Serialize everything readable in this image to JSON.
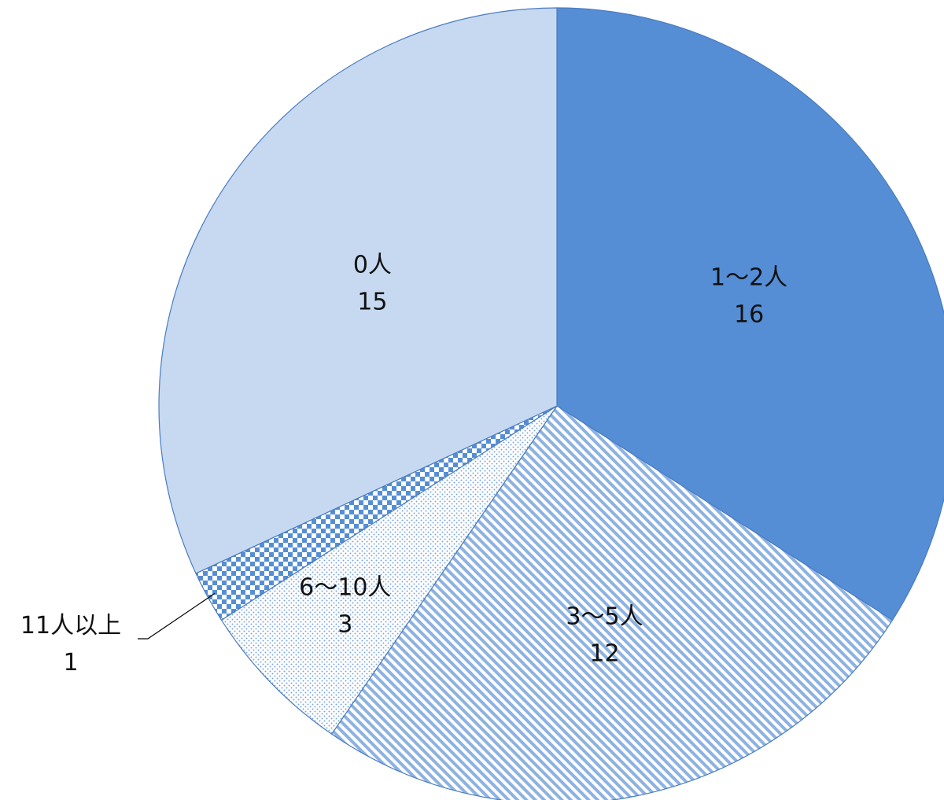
{
  "chart_data": {
    "type": "pie",
    "title": "",
    "slices": [
      {
        "label": "1～2人",
        "value": 16,
        "value_text": "16",
        "fill": "solid",
        "color": "#558ed5"
      },
      {
        "label": "3～5人",
        "value": 12,
        "value_text": "12",
        "fill": "diagonal-stripes",
        "color": "#558ed5"
      },
      {
        "label": "6～10人",
        "value": 3,
        "value_text": "3",
        "fill": "dots",
        "color": "#558ed5"
      },
      {
        "label": "11人以上",
        "value": 1,
        "value_text": "1",
        "fill": "checkerboard",
        "color": "#558ed5"
      },
      {
        "label": "0人",
        "value": 15,
        "value_text": "15",
        "fill": "solid",
        "color": "#c6d9f1"
      }
    ],
    "start_angle": "12 o'clock",
    "direction": "clockwise",
    "legend": "none",
    "data_labels": "category and value"
  },
  "colors": {
    "primary": "#558ed5",
    "light": "#c6d9f1",
    "border": "#4a7cc0"
  }
}
